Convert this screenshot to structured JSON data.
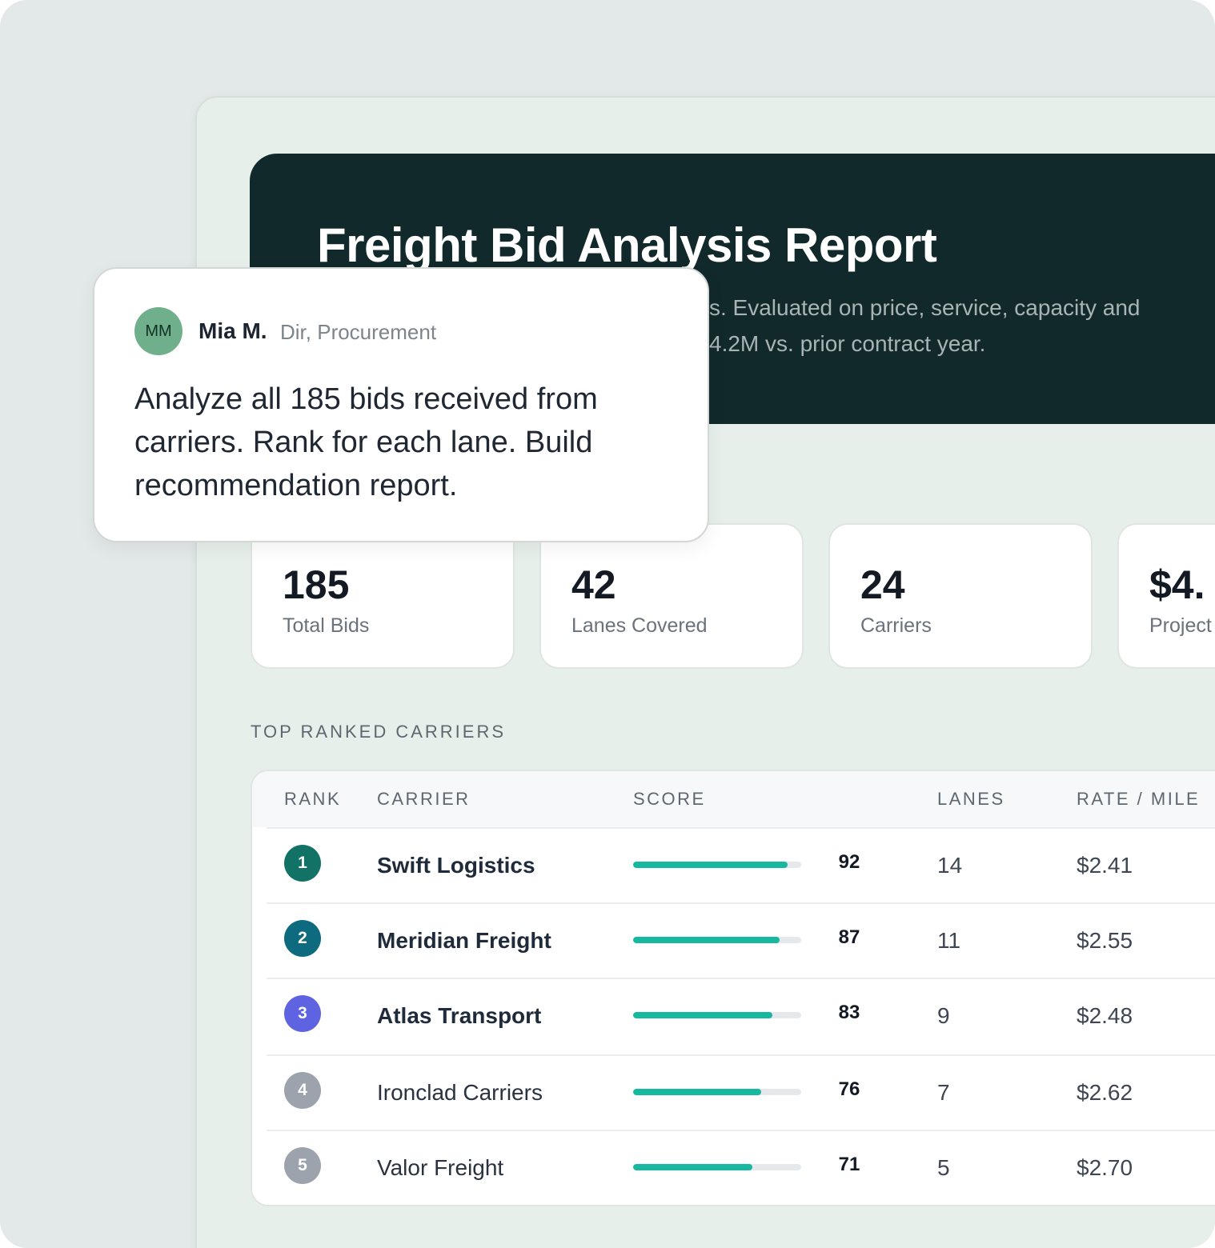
{
  "report": {
    "title": "Freight Bid Analysis Report",
    "description": "s. Evaluated on price, service, capacity and 4.2M vs. prior contract year."
  },
  "comment": {
    "avatar_initials": "MM",
    "author": "Mia M.",
    "role": "Dir, Procurement",
    "text": "Analyze all 185 bids received from carriers. Rank for each lane. Build recommendation report."
  },
  "stats": [
    {
      "value": "185",
      "label": "Total Bids"
    },
    {
      "value": "42",
      "label": "Lanes Covered"
    },
    {
      "value": "24",
      "label": "Carriers"
    },
    {
      "value": "$4.",
      "label": "Project"
    }
  ],
  "section_title": "TOP RANKED CARRIERS",
  "table": {
    "columns": [
      "RANK",
      "CARRIER",
      "SCORE",
      "LANES",
      "RATE / MILE"
    ],
    "rows": [
      {
        "rank": "1",
        "carrier": "Swift Logistics",
        "score": "92",
        "lanes": "14",
        "rate": "$2.41",
        "badge_color": "#127265",
        "highlight": true
      },
      {
        "rank": "2",
        "carrier": "Meridian Freight",
        "score": "87",
        "lanes": "11",
        "rate": "$2.55",
        "badge_color": "#0e6a7e",
        "highlight": true
      },
      {
        "rank": "3",
        "carrier": "Atlas Transport",
        "score": "83",
        "lanes": "9",
        "rate": "$2.48",
        "badge_color": "#5e63e2",
        "highlight": true
      },
      {
        "rank": "4",
        "carrier": "Ironclad Carriers",
        "score": "76",
        "lanes": "7",
        "rate": "$2.62",
        "badge_color": "#9ca3ad",
        "highlight": false
      },
      {
        "rank": "5",
        "carrier": "Valor Freight",
        "score": "71",
        "lanes": "5",
        "rate": "$2.70",
        "badge_color": "#9ca3ad",
        "highlight": false
      }
    ]
  },
  "colors": {
    "hero_bg": "#12292b",
    "score_bar": "#17b8a0",
    "avatar_bg": "#6faf8b"
  }
}
